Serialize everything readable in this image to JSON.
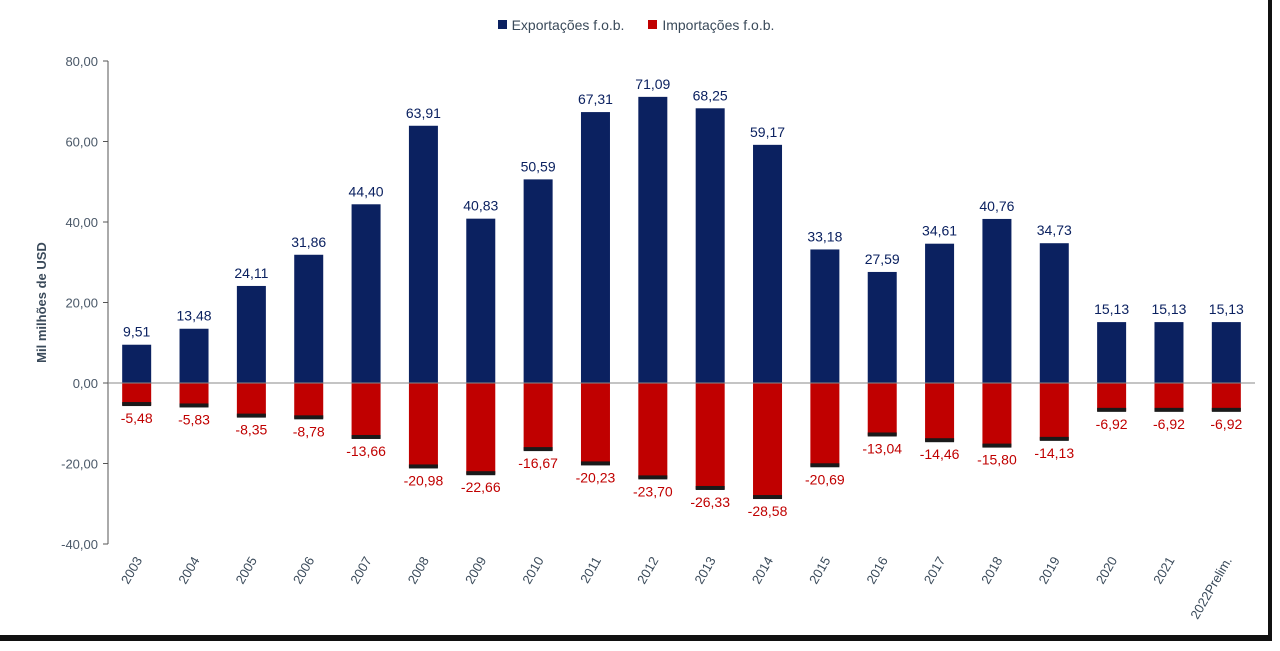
{
  "chart_data": {
    "type": "bar",
    "title": "",
    "xlabel": "",
    "ylabel": "Mil milhões de USD",
    "ylim": [
      -40,
      80
    ],
    "yticks": [
      "80,00",
      "60,00",
      "40,00",
      "20,00",
      "0,00",
      "-20,00",
      "-40,00"
    ],
    "ytick_values": [
      80,
      60,
      40,
      20,
      0,
      -20,
      -40
    ],
    "categories": [
      "2003",
      "2004",
      "2005",
      "2006",
      "2007",
      "2008",
      "2009",
      "2010",
      "2011",
      "2012",
      "2013",
      "2014",
      "2015",
      "2016",
      "2017",
      "2018",
      "2019",
      "2020",
      "2021",
      "2022Prelim."
    ],
    "series": [
      {
        "name": "Exportações f.o.b.",
        "color": "#0b2160",
        "values": [
          9.51,
          13.48,
          24.11,
          31.86,
          44.4,
          63.91,
          40.83,
          50.59,
          67.31,
          71.09,
          68.25,
          59.17,
          33.18,
          27.59,
          34.61,
          40.76,
          34.73,
          15.13,
          15.13,
          15.13
        ],
        "labels": [
          "9,51",
          "13,48",
          "24,11",
          "31,86",
          "44,40",
          "63,91",
          "40,83",
          "50,59",
          "67,31",
          "71,09",
          "68,25",
          "59,17",
          "33,18",
          "27,59",
          "34,61",
          "40,76",
          "34,73",
          "15,13",
          "15,13",
          "15,13"
        ]
      },
      {
        "name": "Importações f.o.b.",
        "color": "#c00000",
        "values": [
          -5.48,
          -5.83,
          -8.35,
          -8.78,
          -13.66,
          -20.98,
          -22.66,
          -16.67,
          -20.23,
          -23.7,
          -26.33,
          -28.58,
          -20.69,
          -13.04,
          -14.46,
          -15.8,
          -14.13,
          -6.92,
          -6.92,
          -6.92
        ],
        "labels": [
          "-5,48",
          "-5,83",
          "-8,35",
          "-8,78",
          "-13,66",
          "-20,98",
          "-22,66",
          "-16,67",
          "-20,23",
          "-23,70",
          "-26,33",
          "-28,58",
          "-20,69",
          "-13,04",
          "-14,46",
          "-15,80",
          "-14,13",
          "-6,92",
          "-6,92",
          "-6,92"
        ]
      }
    ],
    "legend_position": "top-center",
    "grid": false
  }
}
